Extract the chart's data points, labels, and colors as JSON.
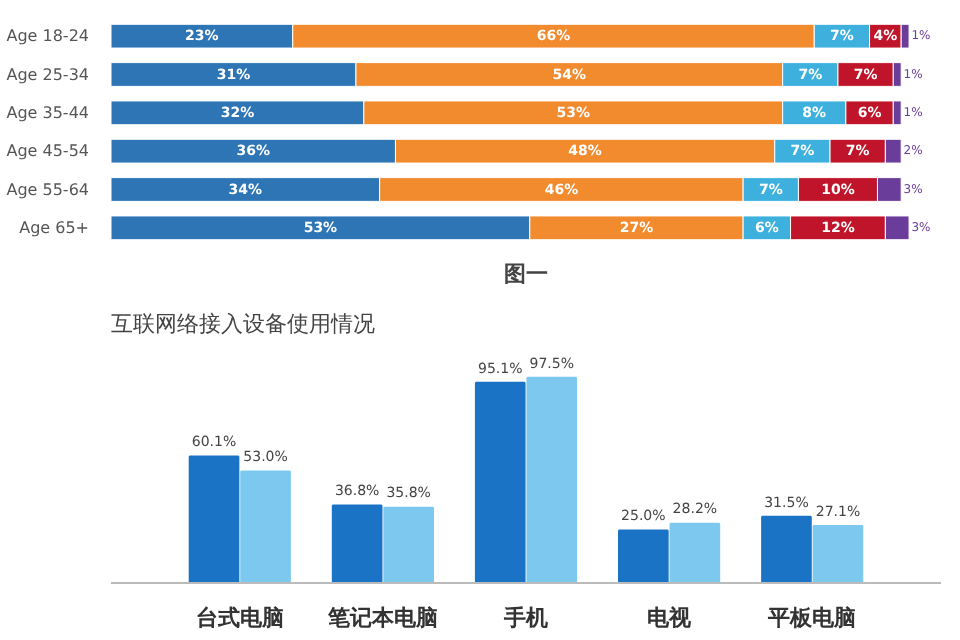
{
  "chart_data": [
    {
      "type": "bar",
      "orientation": "horizontal",
      "stacked": true,
      "categories": [
        "Age 18-24",
        "Age 25-34",
        "Age 35-44",
        "Age 45-54",
        "Age 55-64",
        "Age 65+"
      ],
      "series": [
        {
          "color": "#2e75b6",
          "values": [
            23,
            31,
            32,
            36,
            34,
            53
          ],
          "value_labels": [
            "23%",
            "31%",
            "32%",
            "36%",
            "34%",
            "53%"
          ]
        },
        {
          "color": "#f28a2e",
          "values": [
            66,
            54,
            53,
            48,
            46,
            27
          ],
          "value_labels": [
            "66%",
            "54%",
            "53%",
            "48%",
            "46%",
            "27%"
          ]
        },
        {
          "color": "#3db0de",
          "values": [
            7,
            7,
            8,
            7,
            7,
            6
          ],
          "value_labels": [
            "7%",
            "7%",
            "8%",
            "7%",
            "7%",
            "6%"
          ]
        },
        {
          "color": "#c0142a",
          "values": [
            4,
            7,
            6,
            7,
            10,
            12
          ],
          "value_labels": [
            "4%",
            "7%",
            "6%",
            "7%",
            "10%",
            "12%"
          ]
        },
        {
          "color": "#6a3d9a",
          "values": [
            1,
            1,
            1,
            2,
            3,
            3
          ],
          "value_labels": [
            "1%",
            "1%",
            "1%",
            "2%",
            "3%",
            "3%"
          ]
        }
      ],
      "annotations": [
        "图一"
      ],
      "grid": false
    },
    {
      "type": "bar",
      "title": "互联网络接入设备使用情况",
      "categories": [
        "台式电脑",
        "笔记本电脑",
        "手机",
        "电视",
        "平板电脑"
      ],
      "series": [
        {
          "color": "#1a73c4",
          "values": [
            60.1,
            36.8,
            95.1,
            25.0,
            31.5
          ],
          "value_labels": [
            "60.1%",
            "36.8%",
            "95.1%",
            "25.0%",
            "31.5%"
          ]
        },
        {
          "color": "#7cc8ee",
          "values": [
            53.0,
            35.8,
            97.5,
            28.2,
            27.1
          ],
          "value_labels": [
            "53.0%",
            "35.8%",
            "97.5%",
            "28.2%",
            "27.1%"
          ]
        }
      ],
      "tick_labels": "x",
      "grid": false
    }
  ]
}
